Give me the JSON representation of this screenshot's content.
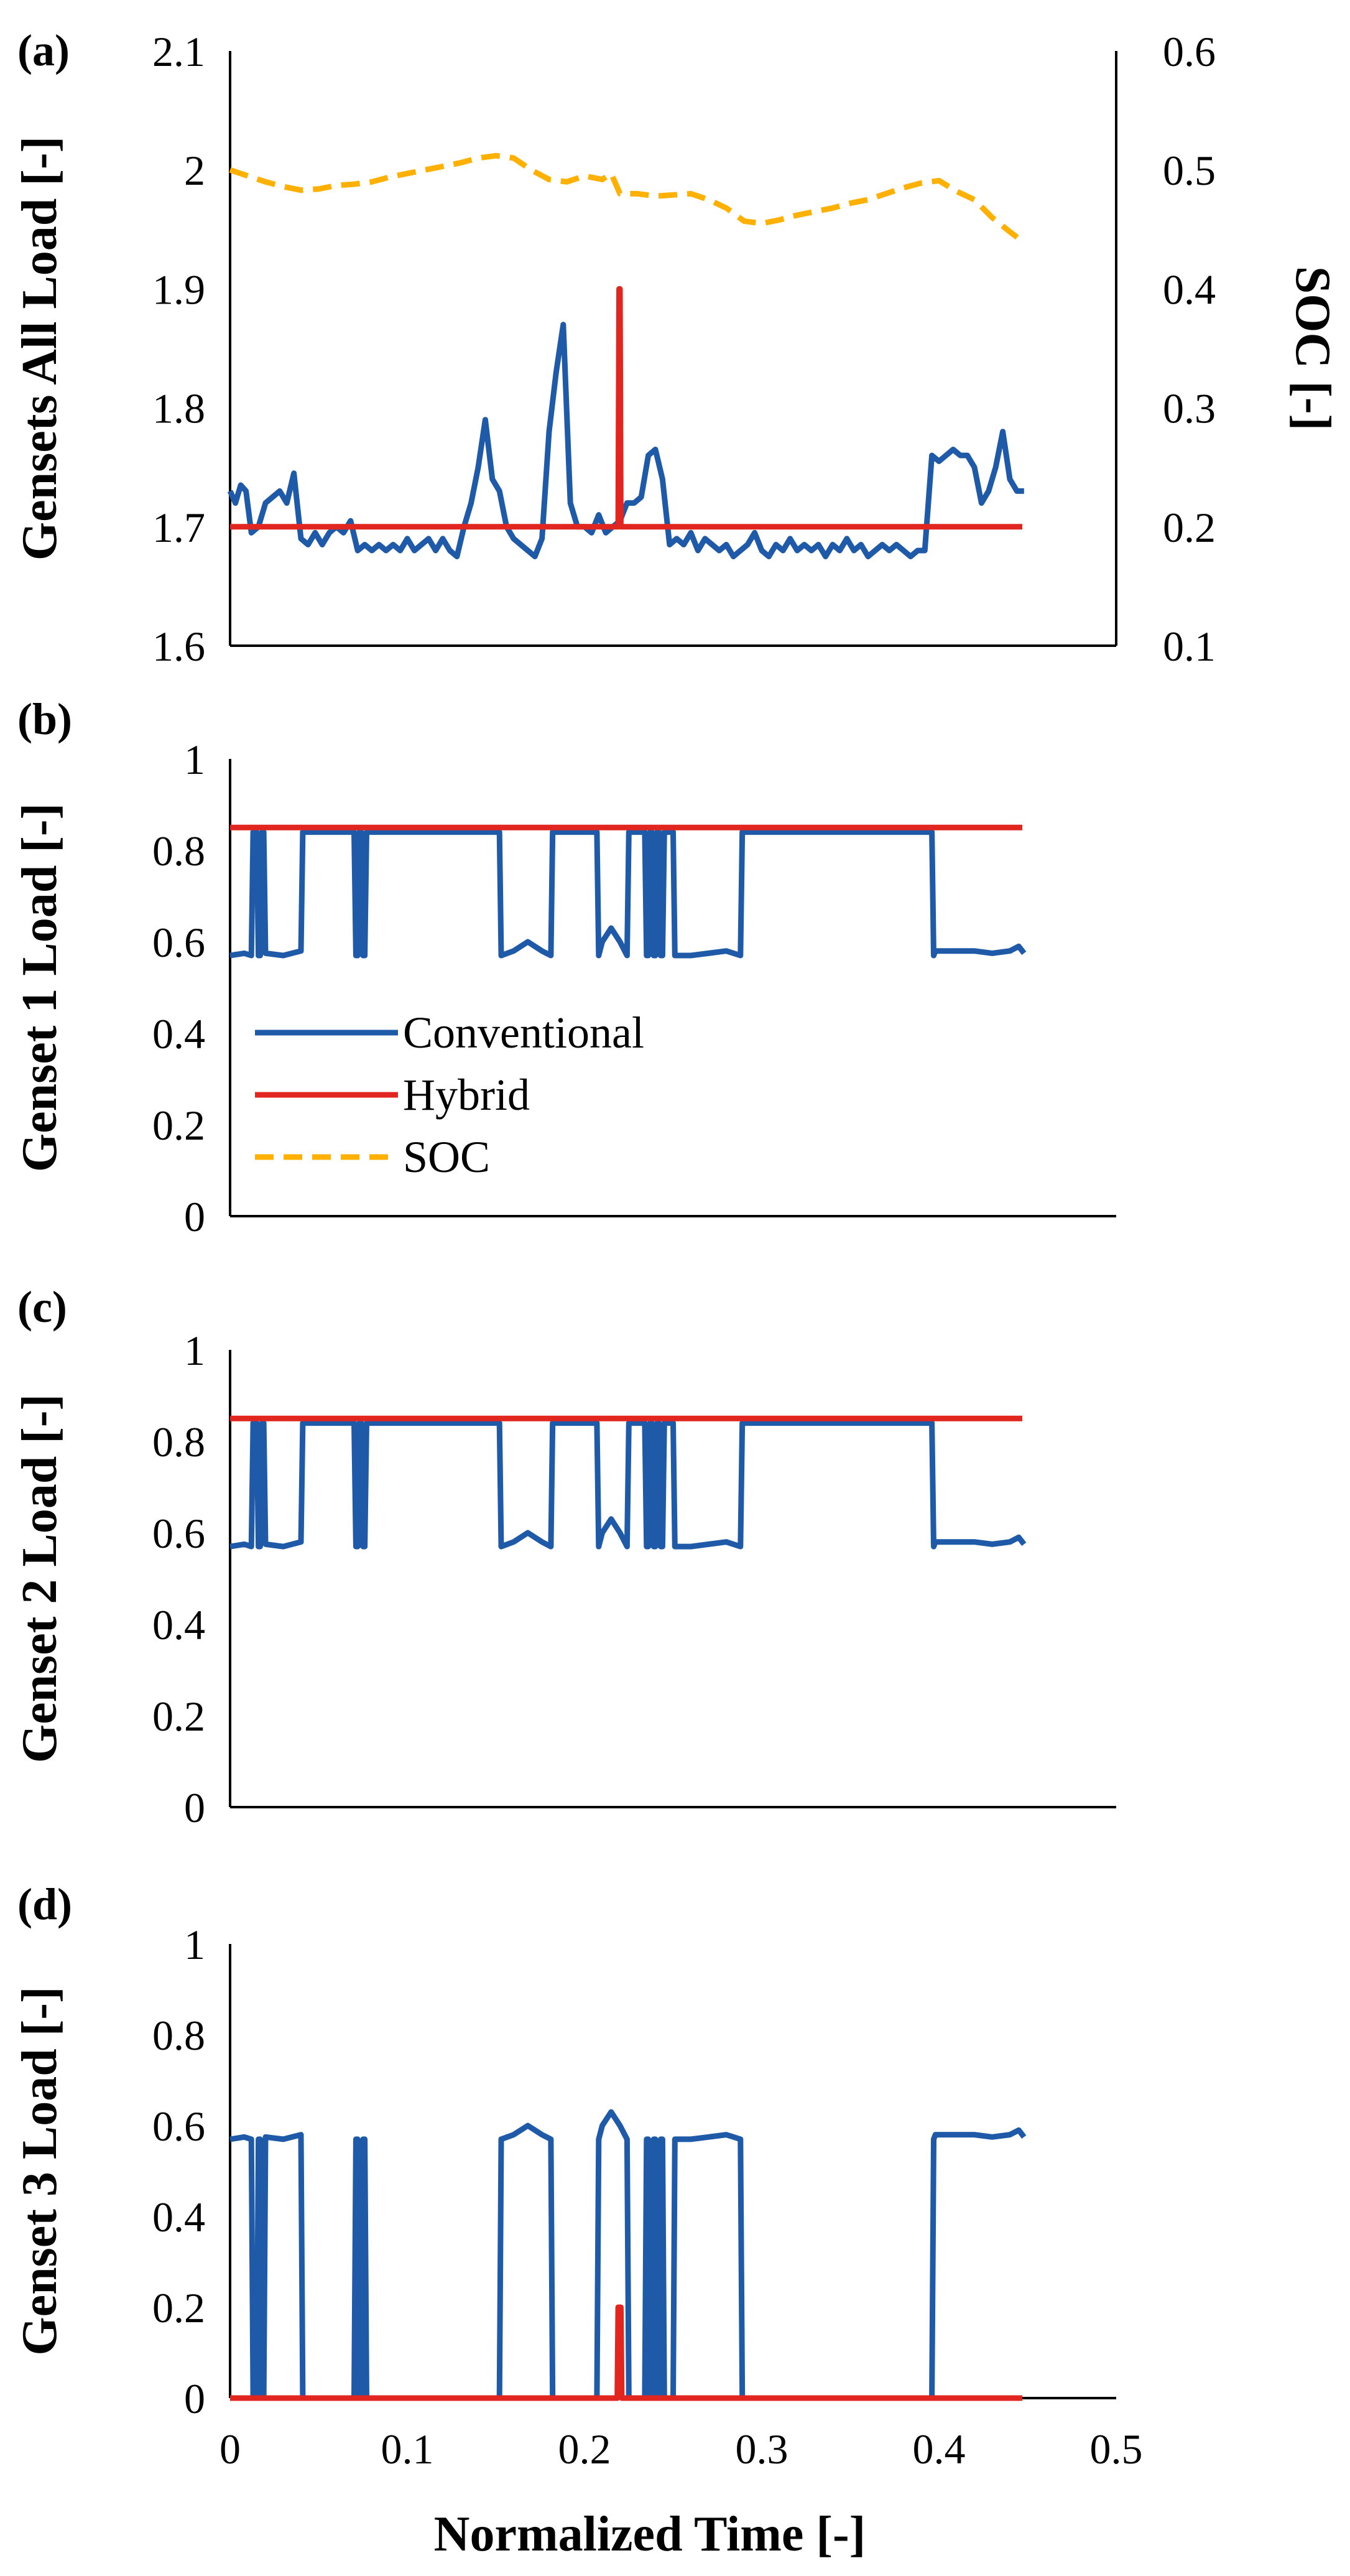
{
  "colors": {
    "conventional": "#1f5aa8",
    "hybrid": "#e0261f",
    "soc": "#ffb000",
    "axis": "#000000"
  },
  "legend": {
    "conventional": "Conventional",
    "hybrid": "Hybrid",
    "soc": "SOC"
  },
  "chart_data": [
    {
      "id": "a",
      "panel_label": "(a)",
      "type": "line",
      "ylabel": "Gensets All Load [-]",
      "y2label": "SOC [-]",
      "ylim": [
        1.6,
        2.1
      ],
      "y2lim": [
        0.1,
        0.6
      ],
      "yticks": [
        "1.6",
        "1.7",
        "1.8",
        "1.9",
        "2",
        "2.1"
      ],
      "y2ticks": [
        "0.1",
        "0.2",
        "0.3",
        "0.4",
        "0.5",
        "0.6"
      ],
      "xlim": [
        0,
        0.5
      ],
      "series": [
        {
          "name": "Conventional",
          "x": [
            0,
            0.003,
            0.006,
            0.009,
            0.012,
            0.016,
            0.02,
            0.024,
            0.028,
            0.032,
            0.036,
            0.04,
            0.044,
            0.048,
            0.052,
            0.056,
            0.06,
            0.064,
            0.068,
            0.072,
            0.076,
            0.08,
            0.084,
            0.088,
            0.092,
            0.096,
            0.1,
            0.104,
            0.108,
            0.112,
            0.116,
            0.12,
            0.124,
            0.128,
            0.132,
            0.136,
            0.14,
            0.144,
            0.148,
            0.152,
            0.156,
            0.16,
            0.164,
            0.168,
            0.172,
            0.176,
            0.18,
            0.184,
            0.188,
            0.192,
            0.196,
            0.2,
            0.204,
            0.208,
            0.212,
            0.216,
            0.22,
            0.224,
            0.228,
            0.232,
            0.236,
            0.24,
            0.244,
            0.248,
            0.252,
            0.256,
            0.26,
            0.264,
            0.268,
            0.272,
            0.276,
            0.28,
            0.284,
            0.288,
            0.292,
            0.296,
            0.3,
            0.304,
            0.308,
            0.312,
            0.316,
            0.32,
            0.324,
            0.328,
            0.332,
            0.336,
            0.34,
            0.344,
            0.348,
            0.352,
            0.356,
            0.36,
            0.364,
            0.368,
            0.372,
            0.376,
            0.38,
            0.384,
            0.388,
            0.392,
            0.396,
            0.4,
            0.404,
            0.408,
            0.412,
            0.416,
            0.42,
            0.424,
            0.428,
            0.432,
            0.436,
            0.44,
            0.444,
            0.448
          ],
          "values": [
            1.73,
            1.72,
            1.735,
            1.73,
            1.695,
            1.7,
            1.72,
            1.725,
            1.73,
            1.72,
            1.745,
            1.69,
            1.685,
            1.695,
            1.685,
            1.695,
            1.7,
            1.695,
            1.705,
            1.68,
            1.685,
            1.68,
            1.685,
            1.68,
            1.685,
            1.68,
            1.69,
            1.68,
            1.685,
            1.69,
            1.68,
            1.69,
            1.68,
            1.675,
            1.7,
            1.72,
            1.75,
            1.79,
            1.74,
            1.73,
            1.7,
            1.69,
            1.685,
            1.68,
            1.675,
            1.69,
            1.78,
            1.83,
            1.87,
            1.72,
            1.7,
            1.7,
            1.695,
            1.71,
            1.695,
            1.7,
            1.705,
            1.72,
            1.72,
            1.725,
            1.76,
            1.765,
            1.74,
            1.685,
            1.69,
            1.685,
            1.695,
            1.68,
            1.69,
            1.685,
            1.68,
            1.685,
            1.675,
            1.68,
            1.685,
            1.695,
            1.68,
            1.675,
            1.685,
            1.68,
            1.69,
            1.68,
            1.685,
            1.68,
            1.685,
            1.675,
            1.685,
            1.68,
            1.69,
            1.68,
            1.685,
            1.675,
            1.68,
            1.685,
            1.68,
            1.685,
            1.68,
            1.675,
            1.68,
            1.68,
            1.76,
            1.755,
            1.76,
            1.765,
            1.76,
            1.76,
            1.75,
            1.72,
            1.73,
            1.75,
            1.78,
            1.74,
            1.73,
            1.73
          ]
        },
        {
          "name": "Hybrid",
          "x": [
            0,
            0.216,
            0.217,
            0.218,
            0.219,
            0.2195,
            0.22,
            0.2205,
            0.221,
            0.222,
            0.447
          ],
          "values": [
            1.7,
            1.7,
            1.7,
            1.7,
            1.7,
            1.9,
            1.9,
            1.7,
            1.7,
            1.7,
            1.7
          ]
        },
        {
          "name": "SOC",
          "axis": "y2",
          "x": [
            0,
            0.01,
            0.02,
            0.03,
            0.04,
            0.05,
            0.06,
            0.07,
            0.08,
            0.09,
            0.1,
            0.11,
            0.12,
            0.13,
            0.14,
            0.15,
            0.16,
            0.17,
            0.18,
            0.19,
            0.2,
            0.21,
            0.215,
            0.22,
            0.23,
            0.24,
            0.25,
            0.26,
            0.27,
            0.28,
            0.29,
            0.3,
            0.31,
            0.32,
            0.33,
            0.34,
            0.35,
            0.36,
            0.37,
            0.38,
            0.39,
            0.4,
            0.41,
            0.42,
            0.43,
            0.44,
            0.447
          ],
          "values": [
            0.5,
            0.495,
            0.49,
            0.486,
            0.483,
            0.484,
            0.487,
            0.488,
            0.49,
            0.494,
            0.497,
            0.5,
            0.503,
            0.506,
            0.51,
            0.512,
            0.51,
            0.5,
            0.492,
            0.49,
            0.495,
            0.492,
            0.497,
            0.48,
            0.48,
            0.478,
            0.479,
            0.48,
            0.475,
            0.468,
            0.457,
            0.455,
            0.458,
            0.462,
            0.465,
            0.468,
            0.472,
            0.475,
            0.48,
            0.485,
            0.489,
            0.491,
            0.482,
            0.475,
            0.46,
            0.448,
            0.44
          ]
        }
      ]
    },
    {
      "id": "b",
      "panel_label": "(b)",
      "type": "line",
      "ylabel": "Genset 1 Load [-]",
      "ylim": [
        0,
        1
      ],
      "yticks": [
        "0",
        "0.2",
        "0.4",
        "0.6",
        "0.8",
        "1"
      ],
      "xlim": [
        0,
        0.5
      ],
      "series": [
        {
          "name": "Conventional",
          "x": [
            0,
            0.008,
            0.012,
            0.013,
            0.015,
            0.016,
            0.017,
            0.018,
            0.019,
            0.02,
            0.03,
            0.04,
            0.041,
            0.042,
            0.043,
            0.07,
            0.071,
            0.072,
            0.073,
            0.074,
            0.075,
            0.076,
            0.077,
            0.078,
            0.079,
            0.1,
            0.12,
            0.14,
            0.15,
            0.152,
            0.153,
            0.16,
            0.168,
            0.176,
            0.181,
            0.182,
            0.183,
            0.19,
            0.205,
            0.207,
            0.208,
            0.21,
            0.215,
            0.22,
            0.224,
            0.225,
            0.226,
            0.23,
            0.234,
            0.235,
            0.236,
            0.237,
            0.238,
            0.239,
            0.24,
            0.241,
            0.242,
            0.243,
            0.244,
            0.245,
            0.246,
            0.247,
            0.248,
            0.25,
            0.251,
            0.252,
            0.253,
            0.26,
            0.27,
            0.28,
            0.288,
            0.289,
            0.29,
            0.31,
            0.33,
            0.35,
            0.37,
            0.39,
            0.396,
            0.397,
            0.398,
            0.41,
            0.42,
            0.43,
            0.44,
            0.445,
            0.448
          ],
          "values": [
            0.57,
            0.575,
            0.57,
            0.84,
            0.84,
            0.57,
            0.57,
            0.84,
            0.84,
            0.575,
            0.57,
            0.58,
            0.84,
            0.84,
            0.84,
            0.84,
            0.57,
            0.57,
            0.84,
            0.84,
            0.57,
            0.57,
            0.84,
            0.84,
            0.84,
            0.84,
            0.84,
            0.84,
            0.84,
            0.84,
            0.57,
            0.58,
            0.6,
            0.58,
            0.57,
            0.84,
            0.84,
            0.84,
            0.84,
            0.84,
            0.57,
            0.6,
            0.63,
            0.6,
            0.57,
            0.84,
            0.84,
            0.84,
            0.84,
            0.57,
            0.57,
            0.84,
            0.84,
            0.57,
            0.57,
            0.84,
            0.84,
            0.57,
            0.57,
            0.84,
            0.84,
            0.84,
            0.84,
            0.84,
            0.57,
            0.57,
            0.57,
            0.57,
            0.575,
            0.58,
            0.57,
            0.84,
            0.84,
            0.84,
            0.84,
            0.84,
            0.84,
            0.84,
            0.84,
            0.57,
            0.58,
            0.58,
            0.58,
            0.575,
            0.58,
            0.59,
            0.575
          ]
        },
        {
          "name": "Hybrid",
          "x": [
            0,
            0.447
          ],
          "values": [
            0.85,
            0.85
          ]
        }
      ]
    },
    {
      "id": "c",
      "panel_label": "(c)",
      "type": "line",
      "ylabel": "Genset 2 Load [-]",
      "ylim": [
        0,
        1
      ],
      "yticks": [
        "0",
        "0.2",
        "0.4",
        "0.6",
        "0.8",
        "1"
      ],
      "xlim": [
        0,
        0.5
      ],
      "series": [
        {
          "name": "Conventional",
          "x": [
            0,
            0.008,
            0.012,
            0.013,
            0.015,
            0.016,
            0.017,
            0.018,
            0.019,
            0.02,
            0.03,
            0.04,
            0.041,
            0.042,
            0.043,
            0.07,
            0.071,
            0.072,
            0.073,
            0.074,
            0.075,
            0.076,
            0.077,
            0.078,
            0.079,
            0.1,
            0.12,
            0.14,
            0.15,
            0.152,
            0.153,
            0.16,
            0.168,
            0.176,
            0.181,
            0.182,
            0.183,
            0.19,
            0.205,
            0.207,
            0.208,
            0.21,
            0.215,
            0.22,
            0.224,
            0.225,
            0.226,
            0.23,
            0.234,
            0.235,
            0.236,
            0.237,
            0.238,
            0.239,
            0.24,
            0.241,
            0.242,
            0.243,
            0.244,
            0.245,
            0.246,
            0.247,
            0.248,
            0.25,
            0.251,
            0.252,
            0.253,
            0.26,
            0.27,
            0.28,
            0.288,
            0.289,
            0.29,
            0.31,
            0.33,
            0.35,
            0.37,
            0.39,
            0.396,
            0.397,
            0.398,
            0.41,
            0.42,
            0.43,
            0.44,
            0.445,
            0.448
          ],
          "values": [
            0.57,
            0.575,
            0.57,
            0.84,
            0.84,
            0.57,
            0.57,
            0.84,
            0.84,
            0.575,
            0.57,
            0.58,
            0.84,
            0.84,
            0.84,
            0.84,
            0.57,
            0.57,
            0.84,
            0.84,
            0.57,
            0.57,
            0.84,
            0.84,
            0.84,
            0.84,
            0.84,
            0.84,
            0.84,
            0.84,
            0.57,
            0.58,
            0.6,
            0.58,
            0.57,
            0.84,
            0.84,
            0.84,
            0.84,
            0.84,
            0.57,
            0.6,
            0.63,
            0.6,
            0.57,
            0.84,
            0.84,
            0.84,
            0.84,
            0.57,
            0.57,
            0.84,
            0.84,
            0.57,
            0.57,
            0.84,
            0.84,
            0.57,
            0.57,
            0.84,
            0.84,
            0.84,
            0.84,
            0.84,
            0.57,
            0.57,
            0.57,
            0.57,
            0.575,
            0.58,
            0.57,
            0.84,
            0.84,
            0.84,
            0.84,
            0.84,
            0.84,
            0.84,
            0.84,
            0.57,
            0.58,
            0.58,
            0.58,
            0.575,
            0.58,
            0.59,
            0.575
          ]
        },
        {
          "name": "Hybrid",
          "x": [
            0,
            0.447
          ],
          "values": [
            0.85,
            0.85
          ]
        }
      ]
    },
    {
      "id": "d",
      "panel_label": "(d)",
      "type": "line",
      "ylabel": "Genset 3 Load [-]",
      "xlabel": "Normalized Time [-]",
      "ylim": [
        0,
        1
      ],
      "yticks": [
        "0",
        "0.2",
        "0.4",
        "0.6",
        "0.8",
        "1"
      ],
      "xlim": [
        0,
        0.5
      ],
      "xticks": [
        "0",
        "0.1",
        "0.2",
        "0.3",
        "0.4",
        "0.5"
      ],
      "series": [
        {
          "name": "Conventional",
          "x": [
            0,
            0.008,
            0.012,
            0.013,
            0.015,
            0.016,
            0.017,
            0.018,
            0.019,
            0.02,
            0.03,
            0.04,
            0.041,
            0.042,
            0.043,
            0.07,
            0.071,
            0.072,
            0.073,
            0.074,
            0.075,
            0.076,
            0.077,
            0.078,
            0.079,
            0.1,
            0.12,
            0.14,
            0.15,
            0.152,
            0.153,
            0.16,
            0.168,
            0.176,
            0.181,
            0.182,
            0.183,
            0.19,
            0.205,
            0.207,
            0.208,
            0.21,
            0.215,
            0.22,
            0.224,
            0.225,
            0.226,
            0.23,
            0.234,
            0.235,
            0.236,
            0.237,
            0.238,
            0.239,
            0.24,
            0.241,
            0.242,
            0.243,
            0.244,
            0.245,
            0.246,
            0.247,
            0.248,
            0.25,
            0.251,
            0.252,
            0.253,
            0.26,
            0.27,
            0.28,
            0.288,
            0.289,
            0.29,
            0.31,
            0.33,
            0.35,
            0.37,
            0.39,
            0.396,
            0.397,
            0.398,
            0.41,
            0.42,
            0.43,
            0.44,
            0.445,
            0.448
          ],
          "values": [
            0.57,
            0.575,
            0.57,
            0,
            0,
            0.57,
            0.57,
            0,
            0,
            0.575,
            0.57,
            0.58,
            0,
            0,
            0,
            0,
            0.57,
            0.57,
            0,
            0,
            0.57,
            0.57,
            0,
            0,
            0,
            0,
            0,
            0,
            0,
            0,
            0.57,
            0.58,
            0.6,
            0.58,
            0.57,
            0,
            0,
            0,
            0,
            0,
            0.57,
            0.6,
            0.63,
            0.6,
            0.57,
            0,
            0,
            0,
            0,
            0.57,
            0.57,
            0,
            0,
            0.57,
            0.57,
            0,
            0,
            0.57,
            0.57,
            0,
            0,
            0,
            0,
            0,
            0.57,
            0.57,
            0.57,
            0.57,
            0.575,
            0.58,
            0.57,
            0,
            0,
            0,
            0,
            0,
            0,
            0,
            0,
            0.57,
            0.58,
            0.58,
            0.58,
            0.575,
            0.58,
            0.59,
            0.575
          ]
        },
        {
          "name": "Hybrid",
          "x": [
            0,
            0.2185,
            0.219,
            0.2205,
            0.221,
            0.447
          ],
          "values": [
            0,
            0,
            0.2,
            0.2,
            0,
            0
          ]
        }
      ]
    }
  ]
}
